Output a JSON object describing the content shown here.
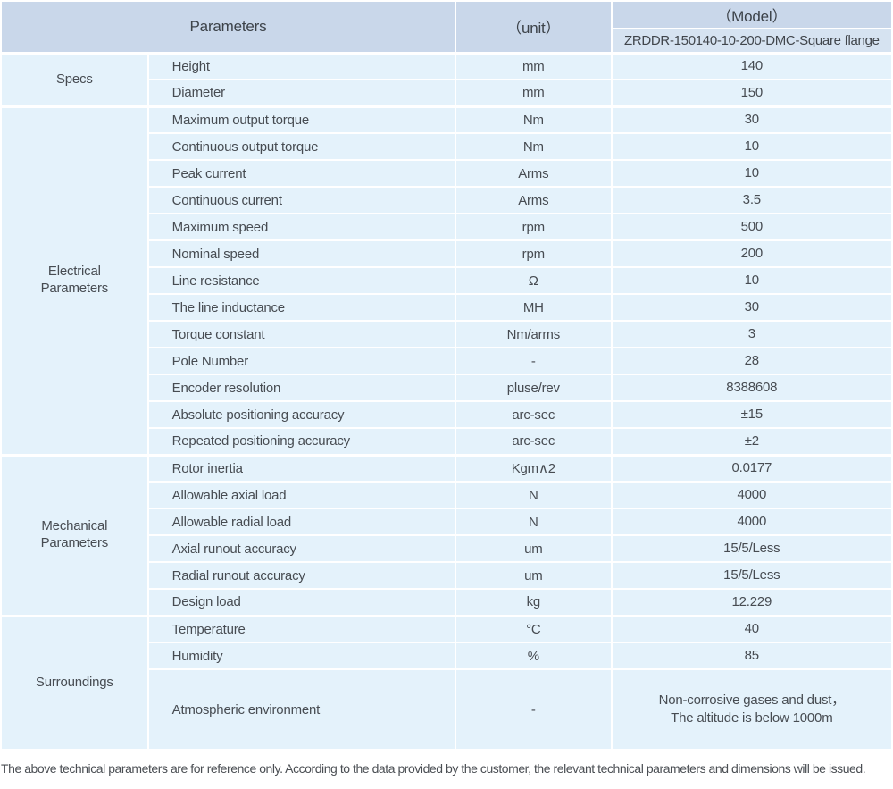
{
  "table": {
    "header": {
      "parameters_label": "Parameters",
      "unit_label": "（unit）",
      "model_label": "（Model）",
      "model_value": "ZRDDR-150140-10-200-DMC-Square flange"
    },
    "sections": [
      {
        "group": "Specs",
        "rows": [
          {
            "param": "Height",
            "unit": "mm",
            "value": "140"
          },
          {
            "param": "Diameter",
            "unit": "mm",
            "value": "150"
          }
        ]
      },
      {
        "group": "Electrical\nParameters",
        "rows": [
          {
            "param": "Maximum output torque",
            "unit": "Nm",
            "value": "30"
          },
          {
            "param": "Continuous output torque",
            "unit": "Nm",
            "value": "10"
          },
          {
            "param": "Peak current",
            "unit": "Arms",
            "value": "10"
          },
          {
            "param": "Continuous current",
            "unit": "Arms",
            "value": "3.5"
          },
          {
            "param": "Maximum speed",
            "unit": "rpm",
            "value": "500"
          },
          {
            "param": "Nominal speed",
            "unit": "rpm",
            "value": "200"
          },
          {
            "param": "Line resistance",
            "unit": "Ω",
            "value": "10"
          },
          {
            "param": "The line inductance",
            "unit": "MH",
            "value": "30"
          },
          {
            "param": "Torque constant",
            "unit": "Nm/arms",
            "value": "3"
          },
          {
            "param": "Pole Number",
            "unit": "-",
            "value": "28"
          },
          {
            "param": "Encoder resolution",
            "unit": "pluse/rev",
            "value": "8388608"
          },
          {
            "param": "Absolute positioning accuracy",
            "unit": "arc-sec",
            "value": "±15"
          },
          {
            "param": "Repeated positioning accuracy",
            "unit": "arc-sec",
            "value": "±2"
          }
        ]
      },
      {
        "group": "Mechanical\nParameters",
        "rows": [
          {
            "param": "Rotor inertia",
            "unit": "Kgm∧2",
            "value": "0.0177"
          },
          {
            "param": "Allowable axial load",
            "unit": "N",
            "value": "4000"
          },
          {
            "param": "Allowable radial load",
            "unit": "N",
            "value": "4000"
          },
          {
            "param": "Axial runout accuracy",
            "unit": "um",
            "value": "15/5/Less"
          },
          {
            "param": "Radial runout accuracy",
            "unit": "um",
            "value": "15/5/Less"
          },
          {
            "param": "Design load",
            "unit": "kg",
            "value": "12.229"
          }
        ]
      },
      {
        "group": "Surroundings",
        "rows": [
          {
            "param": "Temperature",
            "unit": "°C",
            "value": "40"
          },
          {
            "param": "Humidity",
            "unit": "%",
            "value": "85"
          },
          {
            "param": "Atmospheric environment",
            "unit": "-",
            "value": "Non-corrosive gases and dust，\nThe altitude is below 1000m"
          }
        ]
      }
    ]
  },
  "footer": {
    "note": "The above technical parameters are for reference only. According to the data provided by the customer, the relevant technical parameters and dimensions will be issued."
  },
  "colors": {
    "header_bg": "#c9d7ea",
    "model_row_bg": "#d6e3f1",
    "cell_bg": "#e4f2fb",
    "grid_line": "#ffffff",
    "text": "#474c52"
  }
}
